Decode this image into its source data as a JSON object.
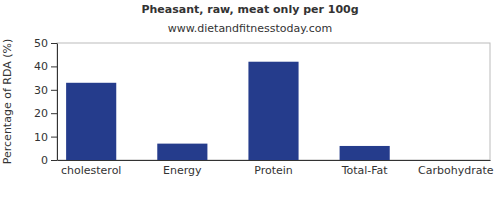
{
  "chart_data": {
    "type": "bar",
    "title": "Pheasant, raw, meat only per 100g",
    "subtitle": "www.dietandfitnesstoday.com",
    "y_label": "Percentage of RDA (%)",
    "categories": [
      "cholesterol",
      "Energy",
      "Protein",
      "Total-Fat",
      "Carbohydrate"
    ],
    "values": [
      33,
      7,
      42,
      6,
      0
    ],
    "color": "#253c8c",
    "ylim": [
      0,
      50
    ],
    "yticks": [
      0,
      10,
      20,
      30,
      40,
      50
    ],
    "grid": false
  }
}
